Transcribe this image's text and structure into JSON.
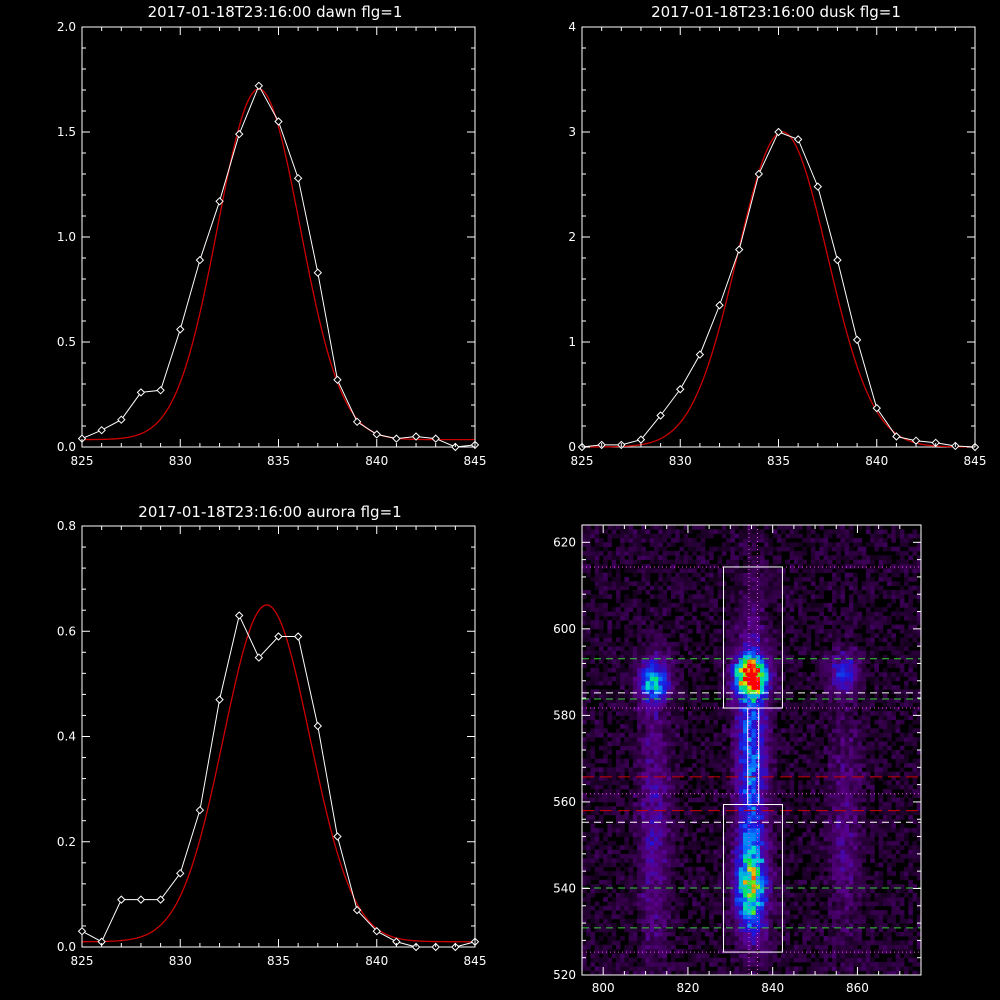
{
  "colors": {
    "background": "#000000",
    "axes": "#ffffff",
    "data": "#ffffff",
    "fit": "#cc0000"
  },
  "chart_data": [
    {
      "id": "dawn",
      "type": "line",
      "title": "2017-01-18T23:16:00 dawn flg=1",
      "xlim": [
        825,
        845
      ],
      "ylim": [
        0,
        2.0
      ],
      "xticks": [
        "825",
        "830",
        "835",
        "840",
        "845"
      ],
      "yticks": [
        "0.0",
        "0.5",
        "1.0",
        "1.5",
        "2.0"
      ],
      "series": [
        {
          "kind": "data",
          "marker": "diamond",
          "x": [
            825,
            826,
            827,
            828,
            829,
            830,
            831,
            832,
            833,
            834,
            835,
            836,
            837,
            838,
            839,
            840,
            841,
            842,
            843,
            844,
            845
          ],
          "y": [
            0.04,
            0.08,
            0.13,
            0.26,
            0.27,
            0.56,
            0.89,
            1.17,
            1.49,
            1.72,
            1.55,
            1.28,
            0.83,
            0.32,
            0.12,
            0.06,
            0.04,
            0.05,
            0.04,
            0.0,
            0.01
          ]
        },
        {
          "kind": "fit",
          "mu": 834.0,
          "sigma": 2.1,
          "amp": 1.67,
          "base": 0.035
        }
      ]
    },
    {
      "id": "dusk",
      "type": "line",
      "title": "2017-01-18T23:16:00 dusk flg=1",
      "xlim": [
        825,
        845
      ],
      "ylim": [
        0,
        4
      ],
      "xticks": [
        "825",
        "830",
        "835",
        "840",
        "845"
      ],
      "yticks": [
        "0",
        "1",
        "2",
        "3",
        "4"
      ],
      "series": [
        {
          "kind": "data",
          "marker": "diamond",
          "x": [
            825,
            826,
            827,
            828,
            829,
            830,
            831,
            832,
            833,
            834,
            835,
            836,
            837,
            838,
            839,
            840,
            841,
            842,
            843,
            844,
            845
          ],
          "y": [
            0.0,
            0.02,
            0.02,
            0.07,
            0.3,
            0.55,
            0.88,
            1.35,
            1.88,
            2.6,
            3.0,
            2.93,
            2.48,
            1.78,
            1.02,
            0.37,
            0.1,
            0.06,
            0.04,
            0.01,
            0.0
          ]
        },
        {
          "kind": "fit",
          "mu": 835.2,
          "sigma": 2.3,
          "amp": 3.0,
          "base": 0.0
        }
      ]
    },
    {
      "id": "aurora",
      "type": "line",
      "title": "2017-01-18T23:16:00 aurora flg=1",
      "xlim": [
        825,
        845
      ],
      "ylim": [
        0,
        0.8
      ],
      "xticks": [
        "825",
        "830",
        "835",
        "840",
        "845"
      ],
      "yticks": [
        "0.0",
        "0.2",
        "0.4",
        "0.6",
        "0.8"
      ],
      "series": [
        {
          "kind": "data",
          "marker": "diamond",
          "x": [
            825,
            826,
            827,
            828,
            829,
            830,
            831,
            832,
            833,
            834,
            835,
            836,
            837,
            838,
            839,
            840,
            841,
            842,
            843,
            844,
            845
          ],
          "y": [
            0.03,
            0.01,
            0.09,
            0.09,
            0.09,
            0.14,
            0.26,
            0.47,
            0.63,
            0.55,
            0.59,
            0.59,
            0.42,
            0.21,
            0.07,
            0.03,
            0.01,
            0.0,
            0.0,
            0.0,
            0.01
          ]
        },
        {
          "kind": "fit",
          "mu": 834.4,
          "sigma": 2.2,
          "amp": 0.64,
          "base": 0.01
        }
      ]
    },
    {
      "id": "image",
      "type": "heatmap",
      "title": "",
      "xlim": [
        795,
        875
      ],
      "ylim": [
        520,
        624
      ],
      "xticks": [
        800,
        820,
        840,
        860
      ],
      "yticks": [
        520,
        540,
        560,
        580,
        600,
        620
      ],
      "blobs": [
        {
          "x": 835,
          "y": 589,
          "sx": 2.5,
          "sy": 3.0,
          "amp": 1.0
        },
        {
          "x": 835,
          "y": 540,
          "sx": 2.5,
          "sy": 7.0,
          "amp": 0.62
        },
        {
          "x": 835,
          "y": 570,
          "sx": 2.5,
          "sy": 20,
          "amp": 0.42
        },
        {
          "x": 812,
          "y": 588,
          "sx": 2.5,
          "sy": 3.5,
          "amp": 0.5
        },
        {
          "x": 812,
          "y": 555,
          "sx": 2.5,
          "sy": 20,
          "amp": 0.2
        },
        {
          "x": 857,
          "y": 590,
          "sx": 2.5,
          "sy": 3,
          "amp": 0.32
        },
        {
          "x": 857,
          "y": 555,
          "sx": 2.5,
          "sy": 20,
          "amp": 0.14
        }
      ],
      "rects": [
        {
          "x0": 828.4,
          "x1": 842.3,
          "y0": 581.7,
          "y1": 614.3
        },
        {
          "x0": 828.4,
          "x1": 842.3,
          "y0": 525.3,
          "y1": 559.4
        },
        {
          "x0": 834.1,
          "x1": 836.7,
          "y0": 559.4,
          "y1": 581.7
        }
      ],
      "hlines": [
        {
          "y": 614.3,
          "color": "#ff40ff",
          "style": "dotted"
        },
        {
          "y": 593.1,
          "color": "#33cc33",
          "style": "dashed"
        },
        {
          "y": 585.2,
          "color": "#ffffff",
          "style": "dashed"
        },
        {
          "y": 583.8,
          "color": "#33cc33",
          "style": "dashed"
        },
        {
          "y": 581.7,
          "color": "#ff40ff",
          "style": "dotted"
        },
        {
          "y": 565.8,
          "color": "#cc0000",
          "style": "longdash"
        },
        {
          "y": 561.9,
          "color": "#ff40ff",
          "style": "dotted"
        },
        {
          "y": 558.0,
          "color": "#cc0000",
          "style": "longdash"
        },
        {
          "y": 555.3,
          "color": "#ffffff",
          "style": "dashed"
        },
        {
          "y": 540.1,
          "color": "#33cc33",
          "style": "dashed"
        },
        {
          "y": 530.9,
          "color": "#33cc33",
          "style": "dashed"
        },
        {
          "y": 525.3,
          "color": "#ff40ff",
          "style": "dotted"
        }
      ],
      "vlines": [
        {
          "x": 834.4,
          "color": "#ff40ff",
          "style": "dotted"
        },
        {
          "x": 836.4,
          "color": "#ff40ff",
          "style": "dotted"
        }
      ],
      "marker": {
        "x": 835,
        "y": 589.5,
        "color": "#ff0000",
        "shape": "plus"
      }
    }
  ]
}
